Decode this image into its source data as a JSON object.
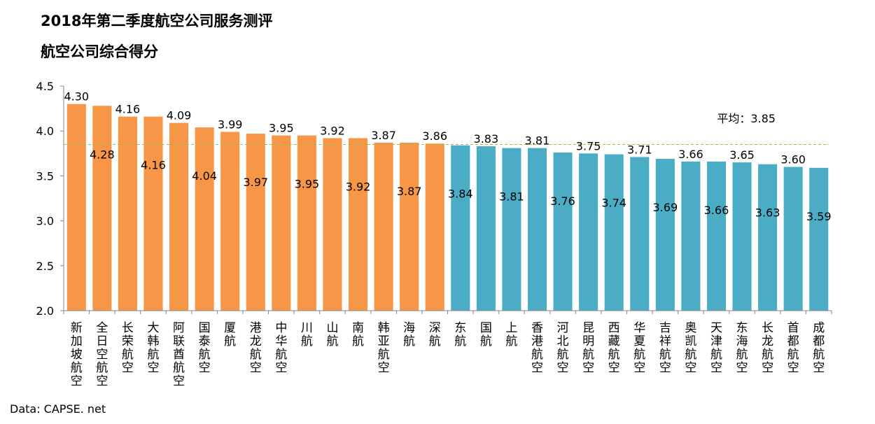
{
  "title": "2018年第二季度航空公司服务测评",
  "subtitle": "航空公司综合得分",
  "source": "Data: CAPSE. net",
  "average_label": "平均：3.85",
  "chart_data": {
    "type": "bar",
    "title": "2018年第二季度航空公司服务测评",
    "subtitle": "航空公司综合得分",
    "xlabel": "",
    "ylabel": "",
    "ylim": [
      2.0,
      4.5
    ],
    "yticks": [
      "2.0",
      "2.5",
      "3.0",
      "3.5",
      "4.0",
      "4.5"
    ],
    "average": 3.85,
    "grid": false,
    "categories": [
      "新加坡航空",
      "全日空航空",
      "长荣航空",
      "大韩航空",
      "阿联酋航空",
      "国泰航空",
      "厦航",
      "港龙航空",
      "中华航空",
      "川航",
      "山航",
      "南航",
      "韩亚航空",
      "海航",
      "深航",
      "东航",
      "国航",
      "上航",
      "香港航空",
      "河北航空",
      "昆明航空",
      "西藏航空",
      "华夏航空",
      "吉祥航空",
      "奥凯航空",
      "天津航空",
      "东海航空",
      "长龙航空",
      "首都航空",
      "成都航空"
    ],
    "values": [
      4.3,
      4.28,
      4.16,
      4.16,
      4.09,
      4.04,
      3.99,
      3.97,
      3.95,
      3.95,
      3.92,
      3.92,
      3.87,
      3.87,
      3.86,
      3.84,
      3.83,
      3.81,
      3.81,
      3.76,
      3.75,
      3.74,
      3.71,
      3.69,
      3.66,
      3.66,
      3.65,
      3.63,
      3.6,
      3.59
    ],
    "value_labels": [
      "4.30",
      "4.28",
      "4.16",
      "4.16",
      "4.09",
      "4.04",
      "3.99",
      "3.97",
      "3.95",
      "3.95",
      "3.92",
      "3.92",
      "3.87",
      "3.87",
      "3.86",
      "3.84",
      "3.83",
      "3.81",
      "3.81",
      "3.76",
      "3.75",
      "3.74",
      "3.71",
      "3.69",
      "3.66",
      "3.66",
      "3.65",
      "3.63",
      "3.60",
      "3.59"
    ],
    "group": [
      "intl",
      "intl",
      "intl",
      "intl",
      "intl",
      "intl",
      "intl",
      "intl",
      "intl",
      "intl",
      "intl",
      "intl",
      "intl",
      "intl",
      "intl",
      "dom",
      "dom",
      "dom",
      "dom",
      "dom",
      "dom",
      "dom",
      "dom",
      "dom",
      "dom",
      "dom",
      "dom",
      "dom",
      "dom",
      "dom"
    ],
    "colors": {
      "intl": "#F79646",
      "dom": "#4BACC6",
      "average_line": "#9BBB59"
    }
  }
}
